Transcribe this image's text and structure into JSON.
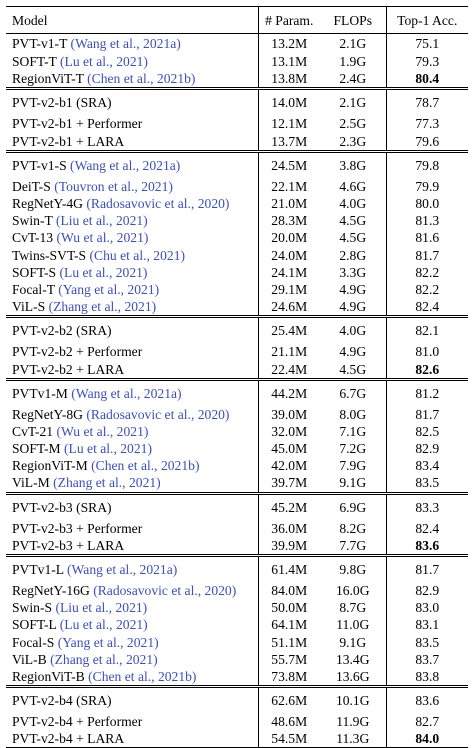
{
  "header": [
    "Model",
    "# Param.",
    "FLOPs",
    "Top-1 Acc."
  ],
  "groups": [
    {
      "rows": [
        {
          "model": "PVT-v1-T",
          "cite": "(Wang et al., 2021a)",
          "params": "13.2M",
          "flops": "2.1G",
          "acc": "75.1"
        },
        {
          "model": "SOFT-T",
          "cite": "(Lu et al., 2021)",
          "params": "13.1M",
          "flops": "1.9G",
          "acc": "79.3"
        },
        {
          "model": "RegionViT-T",
          "cite": "(Chen et al., 2021b)",
          "params": "13.8M",
          "flops": "2.4G",
          "acc": "80.4",
          "best": true
        }
      ]
    },
    {
      "rows": [
        {
          "model": "PVT-v2-b1 (SRA)",
          "params": "14.0M",
          "flops": "2.1G",
          "acc": "78.7"
        },
        {
          "model": "PVT-v2-b1 + Performer",
          "params": "12.1M",
          "flops": "2.5G",
          "acc": "77.3"
        },
        {
          "model": "PVT-v2-b1 + LARA",
          "params": "13.7M",
          "flops": "2.3G",
          "acc": "79.6"
        }
      ]
    },
    {
      "rows": [
        {
          "model": "PVT-v1-S",
          "cite": "(Wang et al., 2021a)",
          "params": "24.5M",
          "flops": "3.8G",
          "acc": "79.8"
        },
        {
          "model": "DeiT-S",
          "cite": "(Touvron et al., 2021)",
          "params": "22.1M",
          "flops": "4.6G",
          "acc": "79.9"
        },
        {
          "model": "RegNetY-4G",
          "cite": "(Radosavovic et al., 2020)",
          "params": "21.0M",
          "flops": "4.0G",
          "acc": "80.0"
        },
        {
          "model": "Swin-T",
          "cite": "(Liu et al., 2021)",
          "params": "28.3M",
          "flops": "4.5G",
          "acc": "81.3"
        },
        {
          "model": "CvT-13",
          "cite": "(Wu et al., 2021)",
          "params": "20.0M",
          "flops": "4.5G",
          "acc": "81.6"
        },
        {
          "model": "Twins-SVT-S",
          "cite": "(Chu et al., 2021)",
          "params": "24.0M",
          "flops": "2.8G",
          "acc": "81.7"
        },
        {
          "model": "SOFT-S",
          "cite": "(Lu et al., 2021)",
          "params": "24.1M",
          "flops": "3.3G",
          "acc": "82.2"
        },
        {
          "model": "Focal-T",
          "cite": "(Yang et al., 2021)",
          "params": "29.1M",
          "flops": "4.9G",
          "acc": "82.2"
        },
        {
          "model": "ViL-S",
          "cite": "(Zhang et al., 2021)",
          "params": "24.6M",
          "flops": "4.9G",
          "acc": "82.4"
        }
      ]
    },
    {
      "rows": [
        {
          "model": "PVT-v2-b2 (SRA)",
          "params": "25.4M",
          "flops": "4.0G",
          "acc": "82.1"
        },
        {
          "model": "PVT-v2-b2 + Performer",
          "params": "21.1M",
          "flops": "4.9G",
          "acc": "81.0"
        },
        {
          "model": "PVT-v2-b2 + LARA",
          "params": "22.4M",
          "flops": "4.5G",
          "acc": "82.6",
          "best": true
        }
      ]
    },
    {
      "rows": [
        {
          "model": "PVTv1-M",
          "cite": "(Wang et al., 2021a)",
          "params": "44.2M",
          "flops": "6.7G",
          "acc": "81.2"
        },
        {
          "model": "RegNetY-8G",
          "cite": "(Radosavovic et al., 2020)",
          "params": "39.0M",
          "flops": "8.0G",
          "acc": "81.7"
        },
        {
          "model": "CvT-21",
          "cite": "(Wu et al., 2021)",
          "params": "32.0M",
          "flops": "7.1G",
          "acc": "82.5"
        },
        {
          "model": "SOFT-M",
          "cite": "(Lu et al., 2021)",
          "params": "45.0M",
          "flops": "7.2G",
          "acc": "82.9"
        },
        {
          "model": "RegionViT-M",
          "cite": "(Chen et al., 2021b)",
          "params": "42.0M",
          "flops": "7.9G",
          "acc": "83.4"
        },
        {
          "model": "ViL-M",
          "cite": "(Zhang et al., 2021)",
          "params": "39.7M",
          "flops": "9.1G",
          "acc": "83.5"
        }
      ]
    },
    {
      "rows": [
        {
          "model": "PVT-v2-b3 (SRA)",
          "params": "45.2M",
          "flops": "6.9G",
          "acc": "83.3"
        },
        {
          "model": "PVT-v2-b3 + Performer",
          "params": "36.0M",
          "flops": "8.2G",
          "acc": "82.4"
        },
        {
          "model": "PVT-v2-b3 + LARA",
          "params": "39.9M",
          "flops": "7.7G",
          "acc": "83.6",
          "best": true
        }
      ]
    },
    {
      "rows": [
        {
          "model": "PVTv1-L",
          "cite": "(Wang et al., 2021a)",
          "params": "61.4M",
          "flops": "9.8G",
          "acc": "81.7"
        },
        {
          "model": "RegNetY-16G",
          "cite": "(Radosavovic et al., 2020)",
          "params": "84.0M",
          "flops": "16.0G",
          "acc": "82.9"
        },
        {
          "model": "Swin-S",
          "cite": "(Liu et al., 2021)",
          "params": "50.0M",
          "flops": "8.7G",
          "acc": "83.0"
        },
        {
          "model": "SOFT-L",
          "cite": "(Lu et al., 2021)",
          "params": "64.1M",
          "flops": "11.0G",
          "acc": "83.1"
        },
        {
          "model": "Focal-S",
          "cite": "(Yang et al., 2021)",
          "params": "51.1M",
          "flops": "9.1G",
          "acc": "83.5"
        },
        {
          "model": "ViL-B",
          "cite": "(Zhang et al., 2021)",
          "params": "55.7M",
          "flops": "13.4G",
          "acc": "83.7"
        },
        {
          "model": "RegionViT-B",
          "cite": "(Chen et al., 2021b)",
          "params": "73.8M",
          "flops": "13.6G",
          "acc": "83.8"
        }
      ]
    },
    {
      "rows": [
        {
          "model": "PVT-v2-b4 (SRA)",
          "params": "62.6M",
          "flops": "10.1G",
          "acc": "83.6"
        },
        {
          "model": "PVT-v2-b4 + Performer",
          "params": "48.6M",
          "flops": "11.9G",
          "acc": "82.7"
        },
        {
          "model": "PVT-v2-b4 + LARA",
          "params": "54.5M",
          "flops": "11.3G",
          "acc": "84.0",
          "best": true
        }
      ]
    }
  ]
}
